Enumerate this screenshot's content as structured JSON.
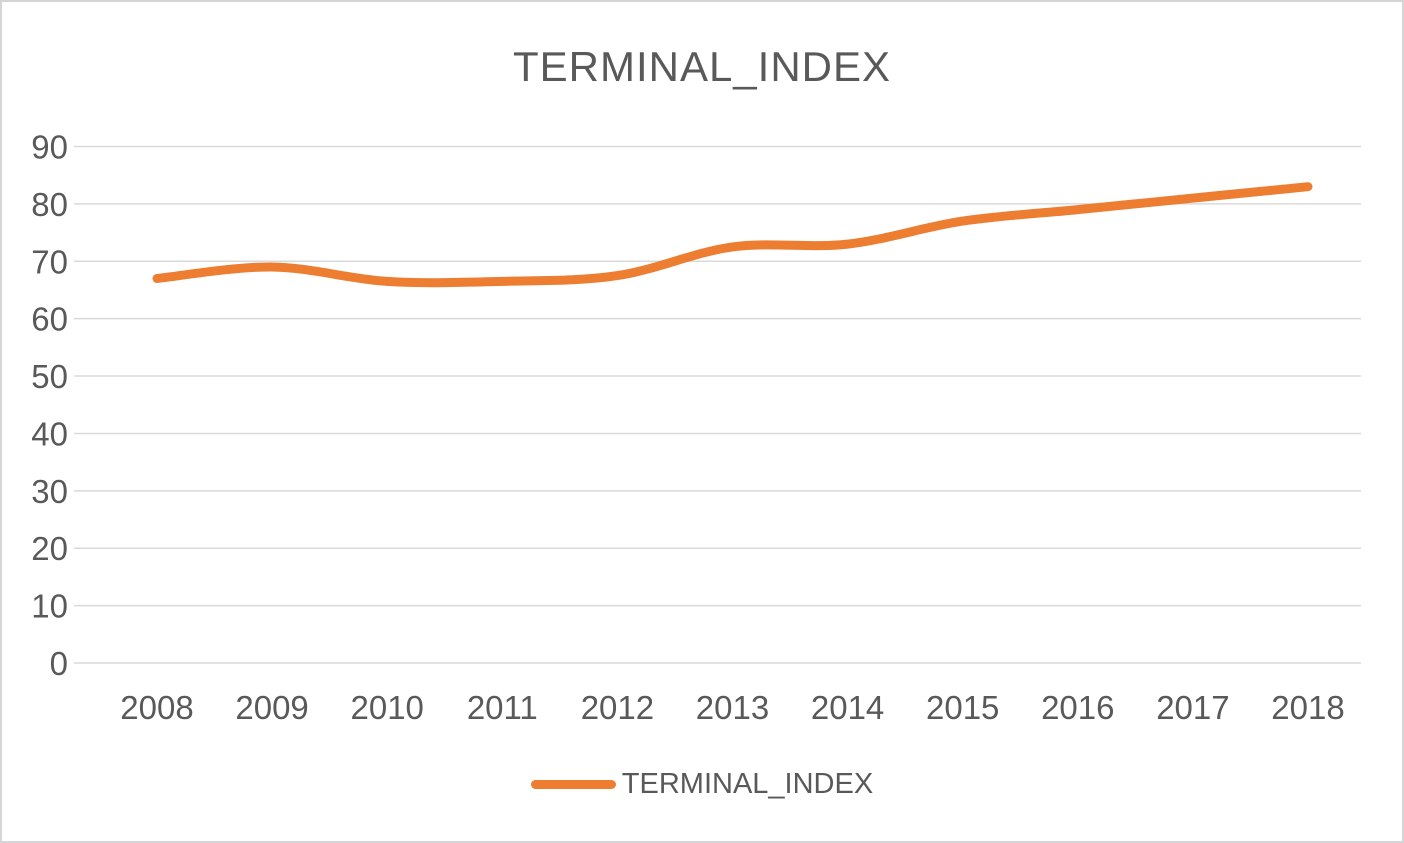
{
  "chart": {
    "title": "TERMINAL_INDEX",
    "legend_label": "TERMINAL_INDEX"
  },
  "chart_data": {
    "type": "line",
    "title": "TERMINAL_INDEX",
    "categories": [
      "2008",
      "2009",
      "2010",
      "2011",
      "2012",
      "2013",
      "2014",
      "2015",
      "2016",
      "2017",
      "2018"
    ],
    "series": [
      {
        "name": "TERMINAL_INDEX",
        "values": [
          67,
          69,
          66.5,
          66.5,
          67.5,
          72.5,
          73,
          77,
          79,
          81,
          83
        ]
      }
    ],
    "xlabel": "",
    "ylabel": "",
    "ylim": [
      0,
      90
    ],
    "yticks": [
      0,
      10,
      20,
      30,
      40,
      50,
      60,
      70,
      80,
      90
    ],
    "grid": true,
    "smoothed_line": true,
    "legend_position": "bottom"
  },
  "colors": {
    "series_line": "#ED7D31",
    "gridline": "#D9D9D9",
    "axis_text": "#595959",
    "title_text": "#595959",
    "frame_border": "#D5D5D8",
    "background": "#FFFFFF"
  }
}
